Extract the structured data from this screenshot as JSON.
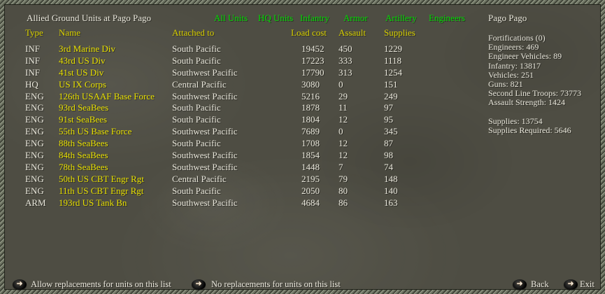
{
  "window": {
    "title": "Allied Ground Units at Pago Pago"
  },
  "menu": {
    "items": [
      "All Units",
      "HQ Units",
      "Infantry",
      "Armor",
      "Artillery",
      "Engineers"
    ]
  },
  "table": {
    "columns": [
      "Type",
      "Name",
      "Attached to",
      "Load cost",
      "Assault",
      "Supplies"
    ],
    "rows": [
      {
        "type": "INF",
        "name": "3rd Marine Div",
        "attached": "South Pacific",
        "load_cost": "19452",
        "assault": "450",
        "supplies": "1229"
      },
      {
        "type": "INF",
        "name": "43rd US Div",
        "attached": "South Pacific",
        "load_cost": "17223",
        "assault": "333",
        "supplies": "1118"
      },
      {
        "type": "INF",
        "name": "41st US Div",
        "attached": "Southwest Pacific",
        "load_cost": "17790",
        "assault": "313",
        "supplies": "1254"
      },
      {
        "type": "HQ",
        "name": "US IX Corps",
        "attached": "Central Pacific",
        "load_cost": "3080",
        "assault": "0",
        "supplies": "151"
      },
      {
        "type": "ENG",
        "name": "126th USAAF Base Force",
        "attached": "Southwest Pacific",
        "load_cost": "5216",
        "assault": "29",
        "supplies": "249"
      },
      {
        "type": "ENG",
        "name": "93rd SeaBees",
        "attached": "South Pacific",
        "load_cost": "1878",
        "assault": "11",
        "supplies": "97"
      },
      {
        "type": "ENG",
        "name": "91st SeaBees",
        "attached": "South Pacific",
        "load_cost": "1804",
        "assault": "12",
        "supplies": "95"
      },
      {
        "type": "ENG",
        "name": "55th US Base Force",
        "attached": "Southwest Pacific",
        "load_cost": "7689",
        "assault": "0",
        "supplies": "345"
      },
      {
        "type": "ENG",
        "name": "88th SeaBees",
        "attached": "South Pacific",
        "load_cost": "1708",
        "assault": "12",
        "supplies": "87"
      },
      {
        "type": "ENG",
        "name": "84th SeaBees",
        "attached": "Southwest Pacific",
        "load_cost": "1854",
        "assault": "12",
        "supplies": "98"
      },
      {
        "type": "ENG",
        "name": "78th SeaBees",
        "attached": "Southwest Pacific",
        "load_cost": "1448",
        "assault": "7",
        "supplies": "74"
      },
      {
        "type": "ENG",
        "name": "50th US CBT Engr Rgt",
        "attached": "Central Pacific",
        "load_cost": "2195",
        "assault": "79",
        "supplies": "148"
      },
      {
        "type": "ENG",
        "name": "11th US CBT Engr Rgt",
        "attached": "South Pacific",
        "load_cost": "2050",
        "assault": "80",
        "supplies": "140"
      },
      {
        "type": "ARM",
        "name": "193rd US Tank Bn",
        "attached": "Southwest Pacific",
        "load_cost": "4684",
        "assault": "86",
        "supplies": "163"
      }
    ]
  },
  "location_panel": {
    "title": "Pago Pago",
    "stats": [
      "Fortifications (0)",
      "Engineers: 469",
      "Engineer Vehicles: 89",
      "Infantry: 13817",
      "Vehicles: 251",
      "Guns: 821",
      "Second Line Troops: 73773",
      "Assault Strength: 1424"
    ],
    "supply_stats": [
      "Supplies: 13754",
      "Supplies Required: 5646"
    ]
  },
  "bottom_bar": {
    "items": [
      {
        "name": "allow-replacements",
        "label": "Allow replacements for units on this list"
      },
      {
        "name": "no-replacements",
        "label": "No replacements for units on this list"
      },
      {
        "name": "back",
        "label": "Back"
      },
      {
        "name": "exit",
        "label": "Exit"
      }
    ]
  },
  "icons": {
    "right_arrow": "➜"
  },
  "colors": {
    "background": "#4e4d43",
    "text_white": "#e9e7db",
    "menu_green": "#00dd00",
    "header_yellow": "#d9d100",
    "link_yellow": "#e8e000"
  }
}
